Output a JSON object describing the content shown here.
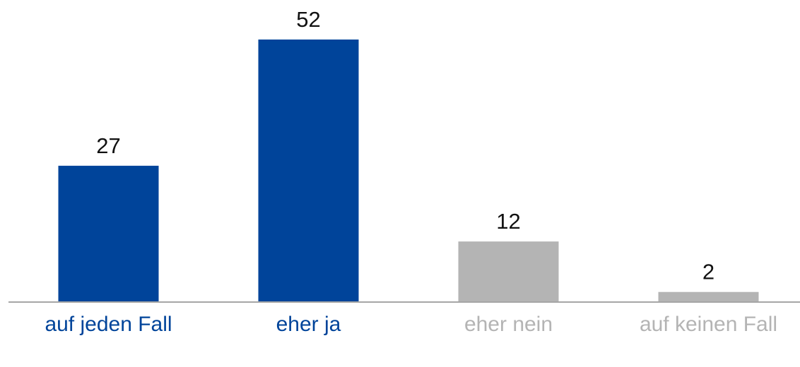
{
  "chart_data": {
    "type": "bar",
    "categories": [
      "auf jeden Fall",
      "eher ja",
      "eher nein",
      "auf keinen Fall"
    ],
    "values": [
      27,
      52,
      12,
      2
    ],
    "colors": [
      "#00449a",
      "#00449a",
      "#b4b4b4",
      "#b4b4b4"
    ]
  }
}
